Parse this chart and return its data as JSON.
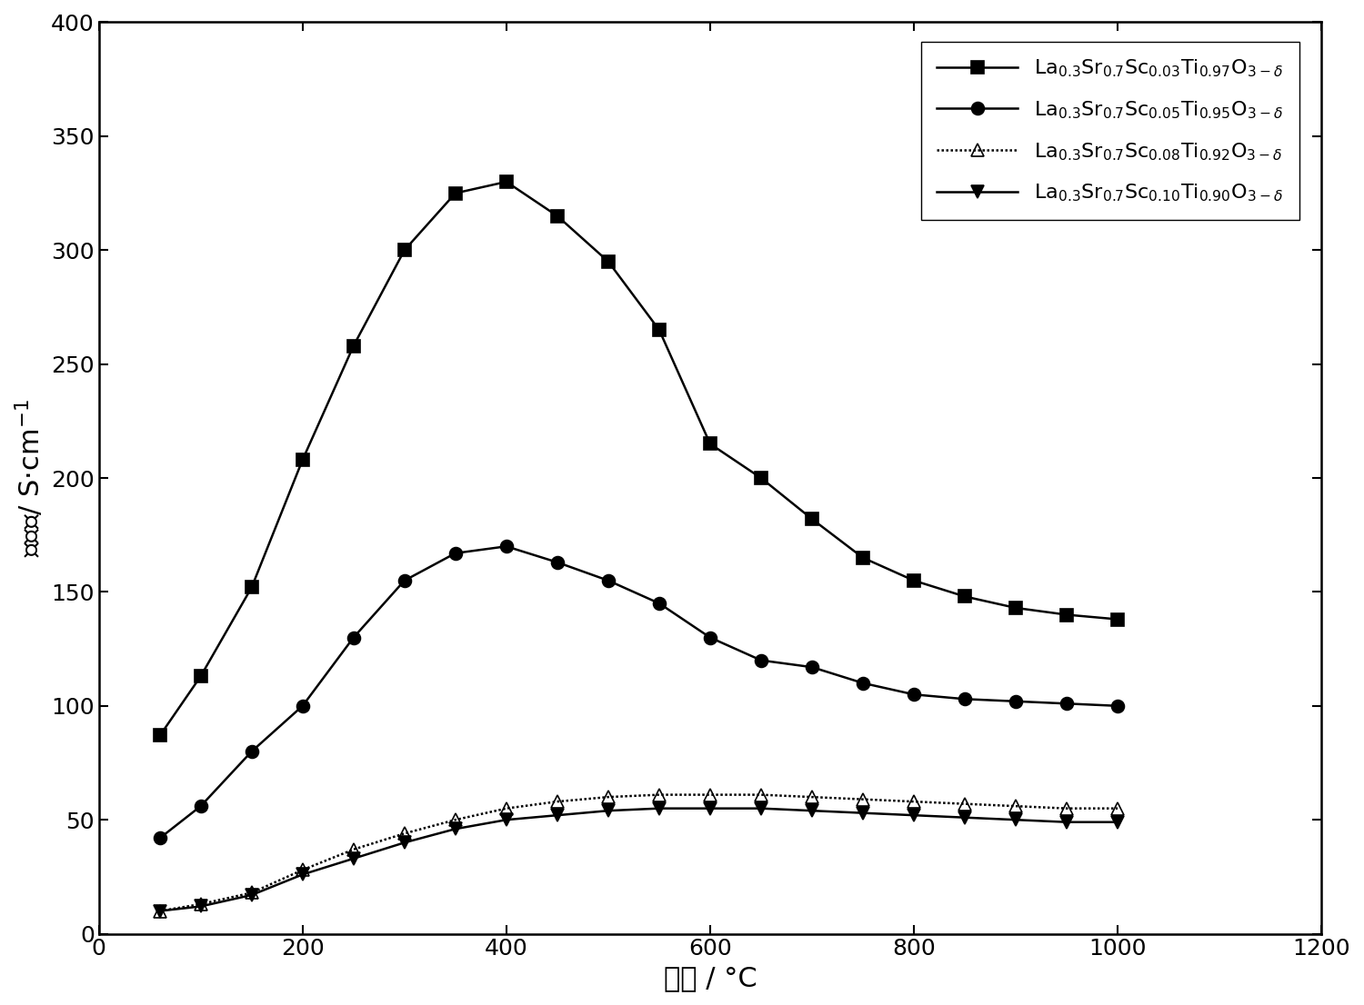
{
  "series": [
    {
      "marker": "s",
      "linestyle": "-",
      "color": "#000000",
      "markerfacecolor": "black",
      "x": [
        60,
        100,
        150,
        200,
        250,
        300,
        350,
        400,
        450,
        500,
        550,
        600,
        650,
        700,
        750,
        800,
        850,
        900,
        950,
        1000
      ],
      "y": [
        87,
        113,
        152,
        208,
        258,
        300,
        325,
        330,
        315,
        295,
        265,
        215,
        200,
        182,
        165,
        155,
        148,
        143,
        140,
        138
      ]
    },
    {
      "marker": "o",
      "linestyle": "-",
      "color": "#000000",
      "markerfacecolor": "black",
      "x": [
        60,
        100,
        150,
        200,
        250,
        300,
        350,
        400,
        450,
        500,
        550,
        600,
        650,
        700,
        750,
        800,
        850,
        900,
        950,
        1000
      ],
      "y": [
        42,
        56,
        80,
        100,
        130,
        155,
        167,
        170,
        163,
        155,
        145,
        130,
        120,
        117,
        110,
        105,
        103,
        102,
        101,
        100
      ]
    },
    {
      "marker": "^",
      "linestyle": "dotted",
      "color": "#000000",
      "markerfacecolor": "none",
      "x": [
        60,
        100,
        150,
        200,
        250,
        300,
        350,
        400,
        450,
        500,
        550,
        600,
        650,
        700,
        750,
        800,
        850,
        900,
        950,
        1000
      ],
      "y": [
        10,
        13,
        18,
        28,
        37,
        44,
        50,
        55,
        58,
        60,
        61,
        61,
        61,
        60,
        59,
        58,
        57,
        56,
        55,
        55
      ]
    },
    {
      "marker": "v",
      "linestyle": "-",
      "color": "#000000",
      "markerfacecolor": "black",
      "x": [
        60,
        100,
        150,
        200,
        250,
        300,
        350,
        400,
        450,
        500,
        550,
        600,
        650,
        700,
        750,
        800,
        850,
        900,
        950,
        1000
      ],
      "y": [
        10,
        12,
        17,
        26,
        33,
        40,
        46,
        50,
        52,
        54,
        55,
        55,
        55,
        54,
        53,
        52,
        51,
        50,
        49,
        49
      ]
    }
  ],
  "legend_labels": [
    "La$_{0.3}$Sr$_{0.7}$Sc$_{0.03}$Ti$_{0.97}$O$_{3-\\delta}$",
    "La$_{0.3}$Sr$_{0.7}$Sc$_{0.05}$Ti$_{0.95}$O$_{3-\\delta}$",
    "La$_{0.3}$Sr$_{0.7}$Sc$_{0.08}$Ti$_{0.92}$O$_{3-\\delta}$",
    "La$_{0.3}$Sr$_{0.7}$Sc$_{0.10}$Ti$_{0.90}$O$_{3-\\delta}$"
  ],
  "xlim": [
    0,
    1200
  ],
  "ylim": [
    0,
    400
  ],
  "xticks": [
    0,
    200,
    400,
    600,
    800,
    1000,
    1200
  ],
  "yticks": [
    0,
    50,
    100,
    150,
    200,
    250,
    300,
    350,
    400
  ],
  "background_color": "#ffffff",
  "legend_fontsize": 16,
  "axis_label_fontsize": 22,
  "tick_fontsize": 18,
  "marker_size": 10,
  "linewidth": 1.8
}
